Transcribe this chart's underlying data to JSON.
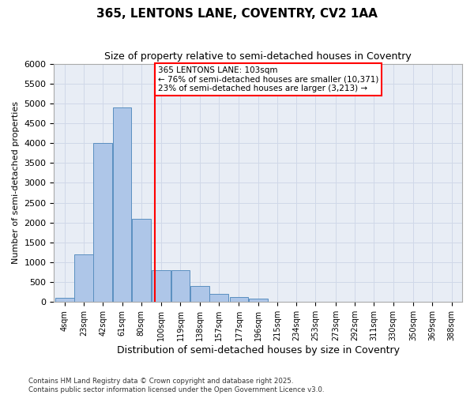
{
  "title": "365, LENTONS LANE, COVENTRY, CV2 1AA",
  "subtitle": "Size of property relative to semi-detached houses in Coventry",
  "xlabel": "Distribution of semi-detached houses by size in Coventry",
  "ylabel": "Number of semi-detached properties",
  "property_size": 103,
  "property_label": "365 LENTONS LANE: 103sqm",
  "pct_smaller": 76,
  "pct_larger": 23,
  "count_smaller": 10371,
  "count_larger": 3213,
  "bin_labels": [
    "4sqm",
    "23sqm",
    "42sqm",
    "61sqm",
    "80sqm",
    "100sqm",
    "119sqm",
    "138sqm",
    "157sqm",
    "177sqm",
    "196sqm",
    "215sqm",
    "234sqm",
    "253sqm",
    "273sqm",
    "292sqm",
    "311sqm",
    "330sqm",
    "350sqm",
    "369sqm",
    "388sqm"
  ],
  "bin_left_edges": [
    4,
    23,
    42,
    61,
    80,
    100,
    119,
    138,
    157,
    177,
    196,
    215,
    234,
    253,
    273,
    292,
    311,
    330,
    350,
    369,
    388
  ],
  "bar_heights": [
    100,
    1200,
    4000,
    4900,
    2100,
    800,
    800,
    400,
    200,
    120,
    90,
    0,
    0,
    0,
    0,
    0,
    0,
    0,
    0,
    0,
    0
  ],
  "bar_color": "#aec6e8",
  "bar_edge_color": "#5a8fc0",
  "vline_x": 103,
  "vline_color": "red",
  "ylim": [
    0,
    6000
  ],
  "yticks": [
    0,
    500,
    1000,
    1500,
    2000,
    2500,
    3000,
    3500,
    4000,
    4500,
    5000,
    5500,
    6000
  ],
  "grid_color": "#d0d8e8",
  "bg_color": "#e8edf5",
  "footer_line1": "Contains HM Land Registry data © Crown copyright and database right 2025.",
  "footer_line2": "Contains public sector information licensed under the Open Government Licence v3.0."
}
